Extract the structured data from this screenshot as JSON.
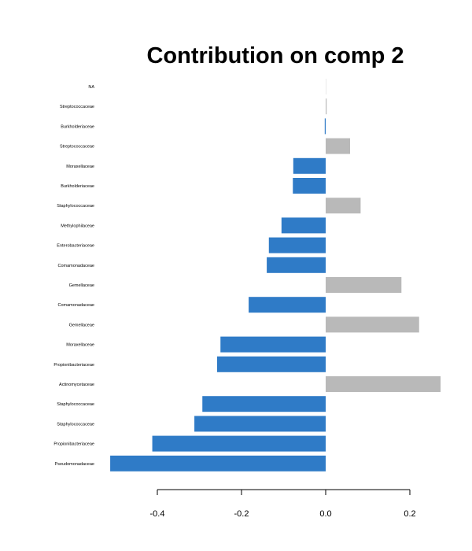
{
  "chart_data": {
    "type": "bar",
    "orientation": "horizontal",
    "title": "Contribution on comp 2",
    "xlabel": "",
    "ylabel": "",
    "xlim": [
      -0.52,
      0.28
    ],
    "xticks": [
      -0.4,
      -0.2,
      0.0,
      0.2
    ],
    "xtick_labels": [
      "-0.4",
      "-0.2",
      "0.0",
      "0.2"
    ],
    "grid": false,
    "legend": "none",
    "colors": {
      "negative": "#2f7bc7",
      "positive": "#b9b9b9"
    },
    "categories": [
      "NA",
      "Streptococcaceae",
      "Burkholderiaceae",
      "Streptococcaceae",
      "Moraxellaceae",
      "Burkholderiaceae",
      "Staphylococcaceae",
      "Methylophilaceae",
      "Enterobacteriaceae",
      "Comamonadaceae",
      "Gemellaceae",
      "Comamonadaceae",
      "Gemellaceae",
      "Moraxellaceae",
      "Propionibacteriaceae",
      "Actinomycetaceae",
      "Staphylococcaceae",
      "Staphylococcaceae",
      "Propionibacteriaceae",
      "Pseudomonadaceae"
    ],
    "values": [
      0.0,
      0.002,
      -0.002,
      0.058,
      -0.077,
      -0.078,
      0.083,
      -0.105,
      -0.135,
      -0.14,
      0.18,
      -0.183,
      0.222,
      -0.25,
      -0.258,
      0.273,
      -0.293,
      -0.312,
      -0.412,
      -0.512
    ]
  }
}
